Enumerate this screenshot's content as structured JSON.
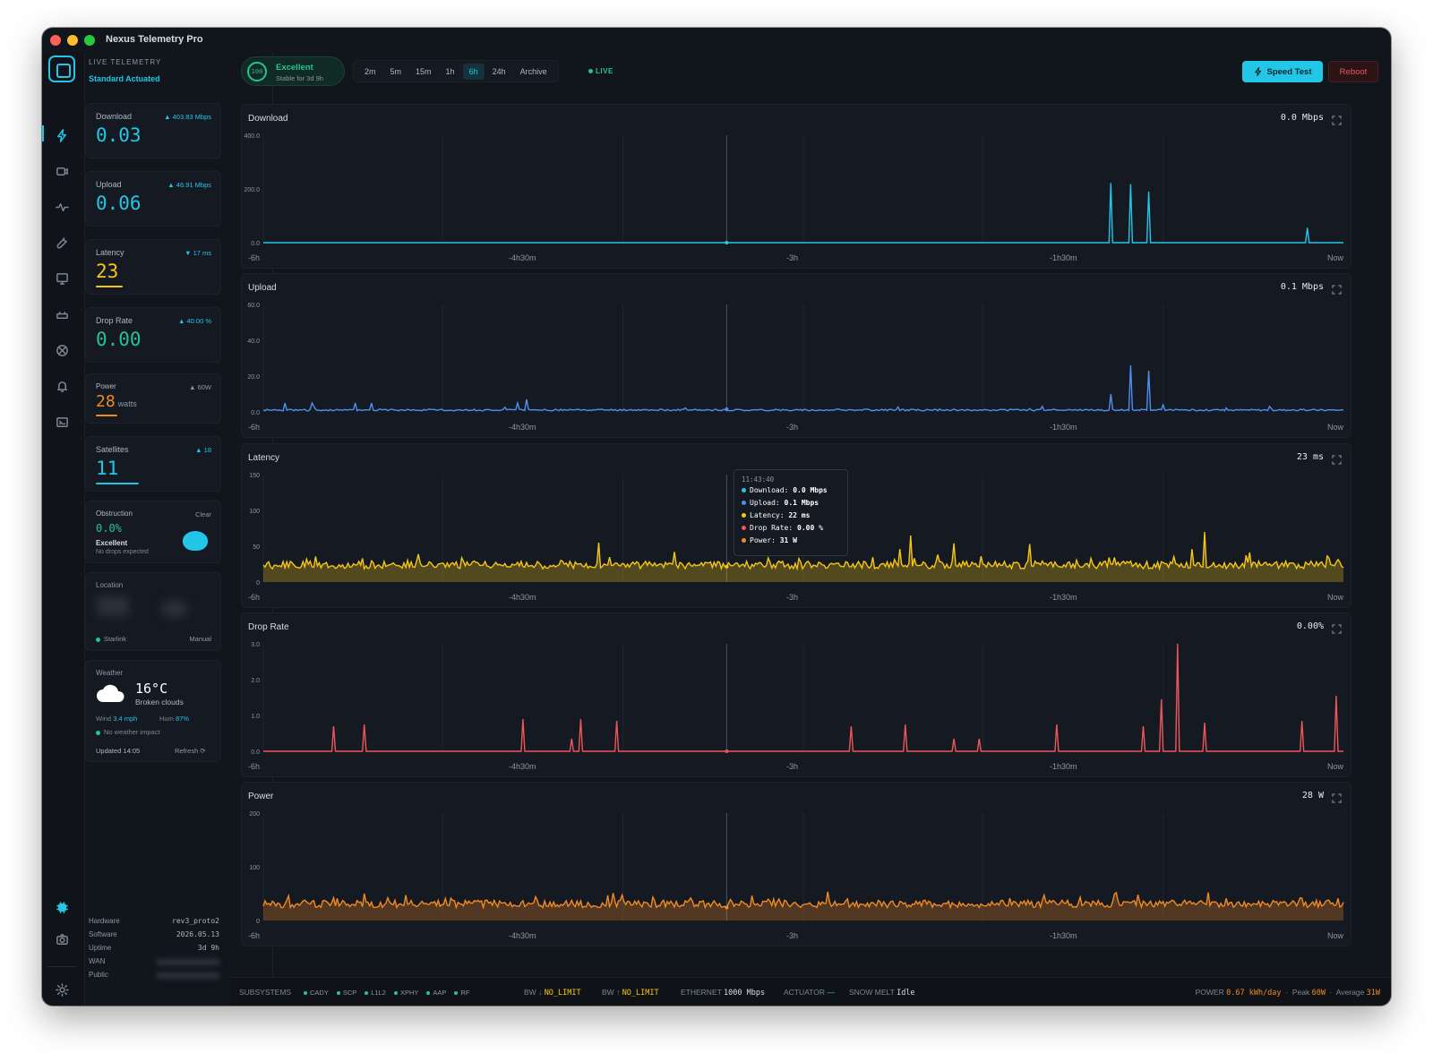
{
  "window": {
    "title": "Nexus Telemetry Pro"
  },
  "sidebar": {
    "kicker": "LIVE TELEMETRY",
    "mode": "Standard Actuated",
    "rail_icons": [
      "bolt-icon",
      "video-icon",
      "pulse-icon",
      "wrench-icon",
      "monitor-icon",
      "router-icon",
      "satellite-icon",
      "bell-icon",
      "terminal-icon",
      "chip-icon",
      "camera-icon",
      "settings-icon"
    ],
    "cards": {
      "download": {
        "label": "Download",
        "delta": "▲ 403.83 Mbps",
        "value": "0.03"
      },
      "upload": {
        "label": "Upload",
        "delta": "▲ 46.91 Mbps",
        "value": "0.06"
      },
      "latency": {
        "label": "Latency",
        "delta": "▼ 17 ms",
        "value": "23"
      },
      "drop_rate": {
        "label": "Drop Rate",
        "delta": "▲ 40.00 %",
        "value": "0.00"
      },
      "power": {
        "label": "Power",
        "delta": "▲ 60W",
        "value": "28",
        "unit": "watts"
      },
      "satellites": {
        "label": "Satellites",
        "delta": "▲ 18",
        "value": "11"
      }
    },
    "obstruction": {
      "label": "Obstruction",
      "status_right": "Clear",
      "value": "0.0%",
      "status": "Excellent",
      "note": "No drops expected"
    },
    "location": {
      "label": "Location",
      "source": "Starlink",
      "mode": "Manual"
    },
    "weather": {
      "label": "Weather",
      "temp": "16°C",
      "desc": "Broken clouds",
      "wind_label": "Wind",
      "wind": "3.4 mph",
      "hum_label": "Hum",
      "hum": "87%",
      "impact": "No weather impact",
      "updated": "Updated 14:05",
      "refresh": "Refresh"
    },
    "system": {
      "hardware_label": "Hardware",
      "hardware": "rev3_proto2",
      "software_label": "Software",
      "software": "2026.05.13",
      "uptime_label": "Uptime",
      "uptime": "3d 9h",
      "wan_label": "WAN",
      "public_label": "Public"
    }
  },
  "topbar": {
    "health_score": "100",
    "health_title": "Excellent",
    "health_sub": "Stable for 3d 9h",
    "ranges": [
      "2m",
      "5m",
      "15m",
      "1h",
      "6h",
      "24h",
      "Archive"
    ],
    "active_range": "6h",
    "live_label": "LIVE",
    "speed_test": "Speed Test",
    "reboot": "Reboot"
  },
  "x_ticks": [
    "-6h",
    "-4h30m",
    "-3h",
    "-1h30m",
    "Now"
  ],
  "charts": {
    "download": {
      "title": "Download",
      "value": "0.0 Mbps",
      "y_ticks": [
        "400.0",
        "200.0",
        "0.0"
      ]
    },
    "upload": {
      "title": "Upload",
      "value": "0.1 Mbps",
      "y_ticks": [
        "60.0",
        "40.0",
        "20.0",
        "0.0"
      ]
    },
    "latency": {
      "title": "Latency",
      "value": "23 ms",
      "y_ticks": [
        "150",
        "100",
        "50",
        "0"
      ]
    },
    "drop_rate": {
      "title": "Drop Rate",
      "value": "0.00%",
      "y_ticks": [
        "3.0",
        "2.0",
        "1.0",
        "0.0"
      ]
    },
    "power": {
      "title": "Power",
      "value": "28 W",
      "y_ticks": [
        "200",
        "100",
        "0"
      ]
    }
  },
  "tooltip": {
    "time": "11:43:40",
    "rows": [
      {
        "label": "Download:",
        "value": "0.0 Mbps",
        "color": "#22c7e8"
      },
      {
        "label": "Upload:",
        "value": "0.1 Mbps",
        "color": "#4f8ff0"
      },
      {
        "label": "Latency:",
        "value": "22 ms",
        "color": "#f5c518"
      },
      {
        "label": "Drop Rate:",
        "value": "0.00 %",
        "color": "#f0555b"
      },
      {
        "label": "Power:",
        "value": "31 W",
        "color": "#f08a24"
      }
    ]
  },
  "footer": {
    "subsystems_label": "SUBSYSTEMS",
    "subsystems": [
      "CADY",
      "SCP",
      "L1L2",
      "XPHY",
      "AAP",
      "RF"
    ],
    "bw_down_label": "BW ↓",
    "bw_down": "NO_LIMIT",
    "bw_up_label": "BW ↑",
    "bw_up": "NO_LIMIT",
    "ethernet_label": "ETHERNET",
    "ethernet": "1000 Mbps",
    "actuator_label": "ACTUATOR",
    "actuator": "—",
    "snow_label": "SNOW MELT",
    "snow": "Idle",
    "power_label": "POWER",
    "power_daily": "0.67 kWh/day",
    "peak_label": "Peak",
    "peak": "60W",
    "avg_label": "Average",
    "avg": "31W"
  },
  "chart_data": [
    {
      "type": "line",
      "title": "Download",
      "ylim": [
        0,
        400
      ],
      "x_ticks": [
        "-6h",
        "-4h30m",
        "-3h",
        "-1h30m",
        "Now"
      ],
      "baseline": 0,
      "color": "#22c7e8",
      "spikes": [
        {
          "x": 0.785,
          "y": 222
        },
        {
          "x": 0.803,
          "y": 218
        },
        {
          "x": 0.82,
          "y": 190
        },
        {
          "x": 0.967,
          "y": 55
        }
      ]
    },
    {
      "type": "line",
      "title": "Upload",
      "ylim": [
        0,
        60
      ],
      "x_ticks": [
        "-6h",
        "-4h30m",
        "-3h",
        "-1h30m",
        "Now"
      ],
      "baseline": 1,
      "color": "#4f8ff0",
      "spikes": [
        {
          "x": 0.02,
          "y": 5
        },
        {
          "x": 0.045,
          "y": 5
        },
        {
          "x": 0.085,
          "y": 5
        },
        {
          "x": 0.1,
          "y": 5
        },
        {
          "x": 0.235,
          "y": 5
        },
        {
          "x": 0.243,
          "y": 7
        },
        {
          "x": 0.785,
          "y": 10
        },
        {
          "x": 0.803,
          "y": 26
        },
        {
          "x": 0.82,
          "y": 23
        },
        {
          "x": 0.833,
          "y": 4
        }
      ]
    },
    {
      "type": "area",
      "title": "Latency",
      "ylim": [
        0,
        150
      ],
      "x_ticks": [
        "-6h",
        "-4h30m",
        "-3h",
        "-1h30m",
        "Now"
      ],
      "baseline": 24,
      "color": "#f5c518",
      "spikes": [
        {
          "x": 0.31,
          "y": 55
        },
        {
          "x": 0.38,
          "y": 42
        },
        {
          "x": 0.59,
          "y": 46
        },
        {
          "x": 0.6,
          "y": 65
        },
        {
          "x": 0.64,
          "y": 54
        },
        {
          "x": 0.71,
          "y": 53
        },
        {
          "x": 0.86,
          "y": 46
        },
        {
          "x": 0.871,
          "y": 70
        }
      ]
    },
    {
      "type": "line",
      "title": "Drop Rate",
      "ylim": [
        0,
        3
      ],
      "x_ticks": [
        "-6h",
        "-4h30m",
        "-3h",
        "-1h30m",
        "Now"
      ],
      "baseline": 0,
      "color": "#f0555b",
      "spikes": [
        {
          "x": 0.065,
          "y": 0.7
        },
        {
          "x": 0.094,
          "y": 0.75
        },
        {
          "x": 0.24,
          "y": 0.9
        },
        {
          "x": 0.285,
          "y": 0.35
        },
        {
          "x": 0.294,
          "y": 0.9
        },
        {
          "x": 0.328,
          "y": 0.85
        },
        {
          "x": 0.545,
          "y": 0.7
        },
        {
          "x": 0.594,
          "y": 0.75
        },
        {
          "x": 0.64,
          "y": 0.35
        },
        {
          "x": 0.662,
          "y": 0.35
        },
        {
          "x": 0.735,
          "y": 0.75
        },
        {
          "x": 0.814,
          "y": 0.7
        },
        {
          "x": 0.832,
          "y": 1.45
        },
        {
          "x": 0.846,
          "y": 3.0
        },
        {
          "x": 0.872,
          "y": 0.8
        },
        {
          "x": 0.962,
          "y": 0.85
        },
        {
          "x": 0.993,
          "y": 1.55
        }
      ]
    },
    {
      "type": "area",
      "title": "Power",
      "ylim": [
        0,
        200
      ],
      "x_ticks": [
        "-6h",
        "-4h30m",
        "-3h",
        "-1h30m",
        "Now"
      ],
      "baseline": 31,
      "color": "#f08a24",
      "spikes": [
        {
          "x": 0.79,
          "y": 52
        },
        {
          "x": 0.81,
          "y": 48
        }
      ]
    }
  ]
}
